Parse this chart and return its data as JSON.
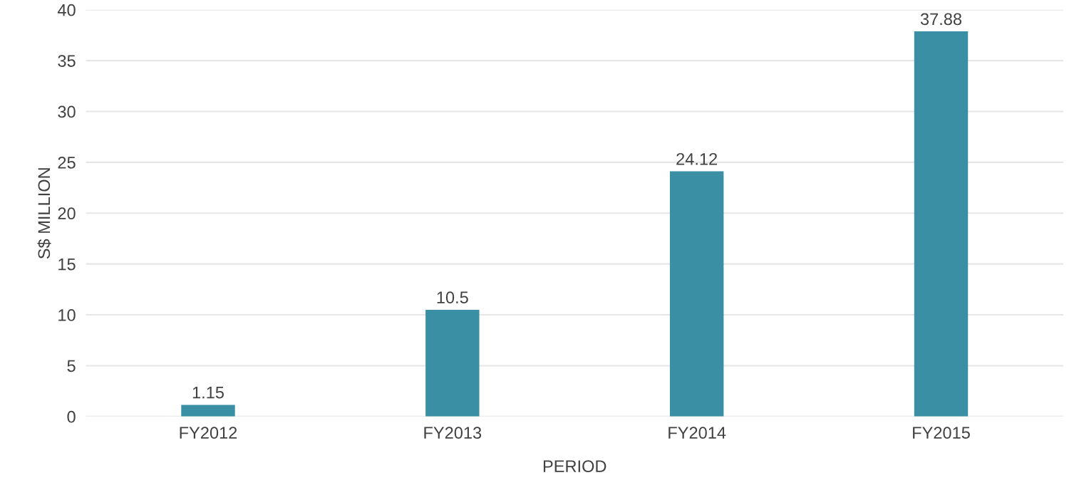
{
  "chart_data": {
    "type": "bar",
    "xlabel": "PERIOD",
    "ylabel": "S$ MILLION",
    "categories": [
      "FY2012",
      "FY2013",
      "FY2014",
      "FY2015"
    ],
    "values": [
      1.15,
      10.5,
      24.12,
      37.88
    ],
    "color": "#3a8fa5",
    "ylim": [
      0,
      40
    ],
    "yticks": [
      0,
      5,
      10,
      15,
      20,
      25,
      30,
      35,
      40
    ],
    "grid": "y",
    "data_labels": true
  }
}
